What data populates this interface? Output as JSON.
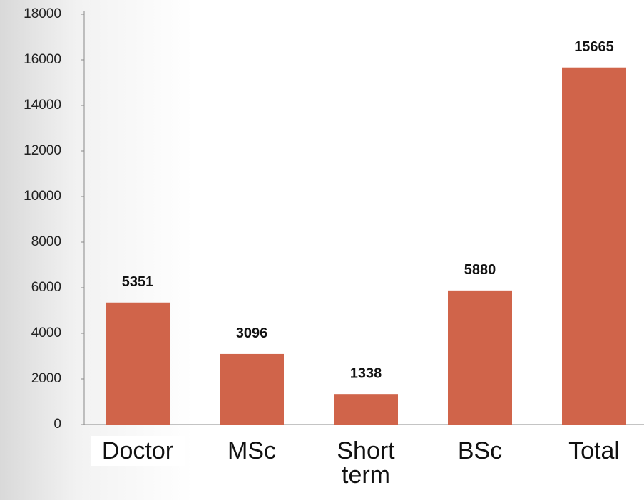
{
  "chart_data": {
    "type": "bar",
    "categories": [
      "Doctor",
      "MSc",
      "Short term",
      "BSc",
      "Total"
    ],
    "values": [
      5351,
      3096,
      1338,
      5880,
      15665
    ],
    "color": "#d0644a",
    "ylim": [
      0,
      18000
    ],
    "yticks": [
      0,
      2000,
      4000,
      6000,
      8000,
      10000,
      12000,
      14000,
      16000,
      18000
    ]
  }
}
